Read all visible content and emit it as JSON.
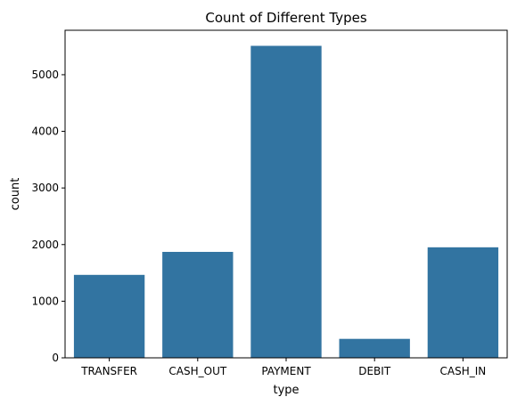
{
  "chart_data": {
    "type": "bar",
    "title": "Count of Different Types",
    "xlabel": "type",
    "ylabel": "count",
    "categories": [
      "TRANSFER",
      "CASH_OUT",
      "PAYMENT",
      "DEBIT",
      "CASH_IN"
    ],
    "values": [
      1465,
      1871,
      5510,
      335,
      1952
    ],
    "ylim": [
      0,
      5785
    ],
    "yticks": [
      0,
      1000,
      2000,
      3000,
      4000,
      5000
    ],
    "grid": false,
    "legend": "none",
    "colors": {
      "bar": "#3274a1",
      "axis": "#000000",
      "background": "#ffffff"
    }
  }
}
